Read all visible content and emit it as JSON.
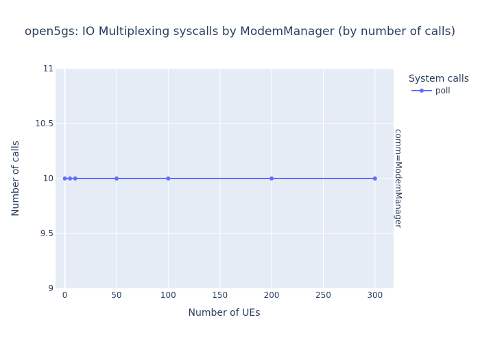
{
  "chart_data": {
    "type": "line",
    "title": "open5gs: IO Multiplexing syscalls by ModemManager (by number of calls)",
    "xlabel": "Number of UEs",
    "ylabel": "Number of calls",
    "facet_label": "comm=ModemManager",
    "legend_title": "System calls",
    "legend_position": "top-right",
    "grid": true,
    "xlim": [
      -9,
      318
    ],
    "ylim": [
      9,
      11
    ],
    "x_ticks": [
      0,
      50,
      100,
      150,
      200,
      250,
      300
    ],
    "y_ticks": [
      9,
      9.5,
      10,
      10.5,
      11
    ],
    "x_tick_labels": [
      "0",
      "50",
      "100",
      "150",
      "200",
      "250",
      "300"
    ],
    "y_tick_labels": [
      "9",
      "9.5",
      "10",
      "10.5",
      "11"
    ],
    "series": [
      {
        "name": "poll",
        "color": "#636efa",
        "x": [
          0,
          5,
          10,
          50,
          100,
          200,
          300
        ],
        "y": [
          10,
          10,
          10,
          10,
          10,
          10,
          10
        ]
      }
    ]
  },
  "colors": {
    "plot_background": "#e5ecf6",
    "gridline": "#ffffff",
    "text": "#2a3f5f"
  }
}
